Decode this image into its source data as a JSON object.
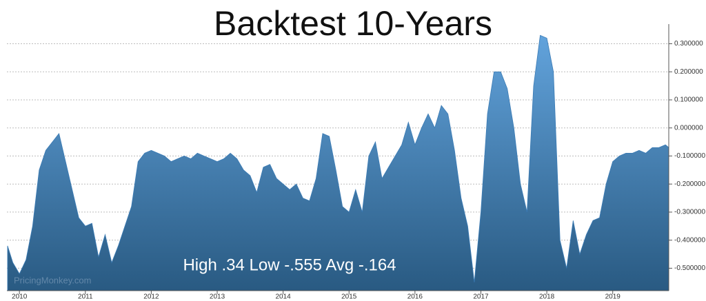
{
  "chart_data": {
    "type": "area",
    "title": "Backtest 10-Years",
    "annotation": "High .34 Low -.555 Avg -.164",
    "watermark": "PricingMonkey.com",
    "color": "#3a7bb5",
    "grid": true,
    "x": [
      2009.82,
      2009.9,
      2010.0,
      2010.1,
      2010.2,
      2010.3,
      2010.4,
      2010.5,
      2010.6,
      2010.7,
      2010.8,
      2010.9,
      2011.0,
      2011.1,
      2011.2,
      2011.3,
      2011.4,
      2011.5,
      2011.6,
      2011.7,
      2011.8,
      2011.9,
      2012.0,
      2012.1,
      2012.2,
      2012.3,
      2012.4,
      2012.5,
      2012.6,
      2012.7,
      2012.8,
      2012.9,
      2013.0,
      2013.1,
      2013.2,
      2013.3,
      2013.4,
      2013.5,
      2013.6,
      2013.7,
      2013.8,
      2013.9,
      2014.0,
      2014.1,
      2014.2,
      2014.3,
      2014.4,
      2014.5,
      2014.6,
      2014.7,
      2014.8,
      2014.9,
      2015.0,
      2015.1,
      2015.2,
      2015.3,
      2015.4,
      2015.5,
      2015.6,
      2015.7,
      2015.8,
      2015.9,
      2016.0,
      2016.1,
      2016.2,
      2016.3,
      2016.4,
      2016.5,
      2016.6,
      2016.7,
      2016.8,
      2016.9,
      2017.0,
      2017.1,
      2017.2,
      2017.3,
      2017.4,
      2017.5,
      2017.6,
      2017.7,
      2017.8,
      2017.9,
      2018.0,
      2018.1,
      2018.2,
      2018.3,
      2018.4,
      2018.5,
      2018.6,
      2018.7,
      2018.8,
      2018.9,
      2019.0,
      2019.1,
      2019.2,
      2019.3,
      2019.4,
      2019.5,
      2019.6,
      2019.7,
      2019.8,
      2019.85
    ],
    "values": [
      -0.42,
      -0.48,
      -0.52,
      -0.47,
      -0.35,
      -0.15,
      -0.08,
      -0.05,
      -0.02,
      -0.12,
      -0.22,
      -0.32,
      -0.35,
      -0.34,
      -0.46,
      -0.38,
      -0.48,
      -0.42,
      -0.35,
      -0.28,
      -0.12,
      -0.09,
      -0.08,
      -0.09,
      -0.1,
      -0.12,
      -0.11,
      -0.1,
      -0.11,
      -0.09,
      -0.1,
      -0.11,
      -0.12,
      -0.11,
      -0.09,
      -0.11,
      -0.15,
      -0.17,
      -0.23,
      -0.14,
      -0.13,
      -0.18,
      -0.2,
      -0.22,
      -0.2,
      -0.25,
      -0.26,
      -0.18,
      -0.02,
      -0.03,
      -0.15,
      -0.28,
      -0.3,
      -0.22,
      -0.3,
      -0.1,
      -0.05,
      -0.18,
      -0.14,
      -0.1,
      -0.06,
      0.02,
      -0.06,
      0.0,
      0.05,
      0.0,
      0.08,
      0.05,
      -0.08,
      -0.25,
      -0.35,
      -0.55,
      -0.3,
      0.05,
      0.2,
      0.2,
      0.14,
      0.0,
      -0.2,
      -0.3,
      0.15,
      0.33,
      0.32,
      0.2,
      -0.4,
      -0.5,
      -0.33,
      -0.45,
      -0.38,
      -0.33,
      -0.32,
      -0.2,
      -0.12,
      -0.1,
      -0.09,
      -0.09,
      -0.08,
      -0.09,
      -0.07,
      -0.07,
      -0.06,
      -0.07
    ],
    "xlim": [
      2009.81,
      2019.85
    ],
    "xticks": [
      2010,
      2011,
      2012,
      2013,
      2014,
      2015,
      2016,
      2017,
      2018,
      2019
    ],
    "ylim": [
      -0.58,
      0.37
    ],
    "yticks": [
      {
        "value": 0.3,
        "label": "0.300000"
      },
      {
        "value": 0.2,
        "label": "0.200000"
      },
      {
        "value": 0.1,
        "label": "0.100000"
      },
      {
        "value": 0,
        "label": "0.000000"
      },
      {
        "value": -0.1,
        "label": "-0.100000"
      },
      {
        "value": -0.2,
        "label": "-0.200000"
      },
      {
        "value": -0.3,
        "label": "-0.300000"
      },
      {
        "value": -0.4,
        "label": "-0.400000"
      },
      {
        "value": -0.5,
        "label": "-0.500000"
      }
    ]
  }
}
